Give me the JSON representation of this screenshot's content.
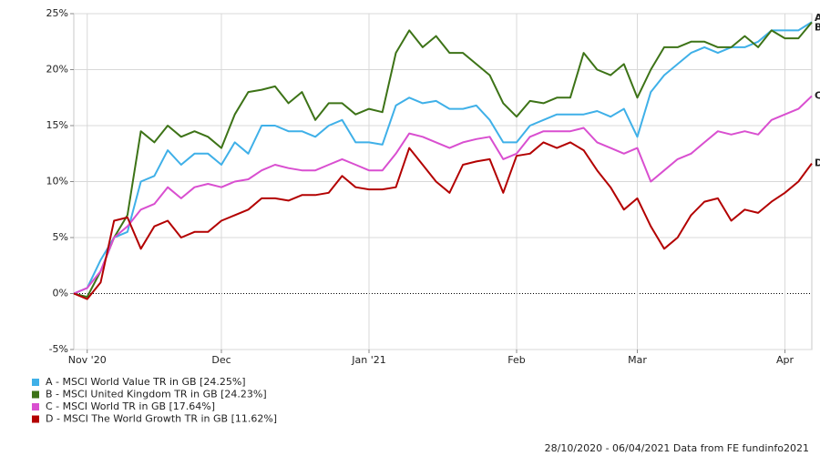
{
  "chart_data": {
    "type": "line",
    "categories": [
      null,
      "Nov '20",
      null,
      null,
      null,
      null,
      null,
      null,
      null,
      null,
      null,
      "Dec",
      null,
      null,
      null,
      null,
      null,
      null,
      null,
      null,
      null,
      null,
      "Jan '21",
      null,
      null,
      null,
      null,
      null,
      null,
      null,
      null,
      null,
      null,
      "Feb",
      null,
      null,
      null,
      null,
      null,
      null,
      null,
      null,
      "Mar",
      null,
      null,
      null,
      null,
      null,
      null,
      null,
      null,
      null,
      null,
      "Apr",
      null,
      null
    ],
    "ylim": [
      -5,
      25
    ],
    "yticks": [
      {
        "value": -5,
        "label": "-5%"
      },
      {
        "value": 0,
        "label": "0%"
      },
      {
        "value": 5,
        "label": "5%"
      },
      {
        "value": 10,
        "label": "10%"
      },
      {
        "value": 15,
        "label": "15%"
      },
      {
        "value": 20,
        "label": "20%"
      },
      {
        "value": 25,
        "label": "25%"
      }
    ],
    "grid": true,
    "series": [
      {
        "name": "A - MSCI World Value TR in GB [24.25%]",
        "tag": "A",
        "color": "#3fb0e8",
        "values": [
          0,
          0.5,
          3,
          5,
          5.5,
          10,
          10.5,
          12.8,
          11.5,
          12.5,
          12.5,
          11.5,
          13.5,
          12.5,
          15,
          15,
          14.5,
          14.5,
          14,
          15,
          15.5,
          13.5,
          13.5,
          13.3,
          16.8,
          17.5,
          17,
          17.2,
          16.5,
          16.5,
          16.8,
          15.5,
          13.5,
          13.5,
          15,
          15.5,
          16,
          16,
          16,
          16.3,
          15.8,
          16.5,
          14,
          18,
          19.5,
          20.5,
          21.5,
          22,
          21.5,
          22,
          22,
          22.5,
          23.5,
          23.5,
          23.5,
          24.25
        ]
      },
      {
        "name": "B - MSCI United Kingdom TR in GB [24.23%]",
        "tag": "B",
        "color": "#3d7317",
        "values": [
          0,
          -0.3,
          2,
          5,
          7,
          14.5,
          13.5,
          15,
          14,
          14.5,
          14,
          13,
          16,
          18,
          18.2,
          18.5,
          17,
          18,
          15.5,
          17,
          17,
          16,
          16.5,
          16.2,
          21.5,
          23.5,
          22,
          23,
          21.5,
          21.5,
          20.5,
          19.5,
          17,
          15.8,
          17.2,
          17,
          17.5,
          17.5,
          21.5,
          20,
          19.5,
          20.5,
          17.5,
          20,
          22,
          22,
          22.5,
          22.5,
          22,
          22,
          23,
          22,
          23.5,
          22.8,
          22.8,
          24.23
        ]
      },
      {
        "name": "C - MSCI World TR in GB [17.64%]",
        "tag": "C",
        "color": "#d94fd0",
        "values": [
          0,
          0.5,
          2,
          5,
          6,
          7.5,
          8,
          9.5,
          8.5,
          9.5,
          9.8,
          9.5,
          10,
          10.2,
          11,
          11.5,
          11.2,
          11,
          11,
          11.5,
          12,
          11.5,
          11,
          11,
          12.5,
          14.3,
          14,
          13.5,
          13,
          13.5,
          13.8,
          14,
          12,
          12.5,
          14,
          14.5,
          14.5,
          14.5,
          14.8,
          13.5,
          13,
          12.5,
          13,
          10,
          11,
          12,
          12.5,
          13.5,
          14.5,
          14.2,
          14.5,
          14.2,
          15.5,
          16,
          16.5,
          17.64
        ]
      },
      {
        "name": "D - MSCI The World Growth TR in GB [11.62%]",
        "tag": "D",
        "color": "#b30000",
        "values": [
          0,
          -0.5,
          1,
          6.5,
          6.8,
          4,
          6,
          6.5,
          5,
          5.5,
          5.5,
          6.5,
          7,
          7.5,
          8.5,
          8.5,
          8.3,
          8.8,
          8.8,
          9,
          10.5,
          9.5,
          9.3,
          9.3,
          9.5,
          13,
          11.5,
          10,
          9,
          11.5,
          11.8,
          12,
          9,
          12.3,
          12.5,
          13.5,
          13,
          13.5,
          12.8,
          11,
          9.5,
          7.5,
          8.5,
          6,
          4,
          5,
          7,
          8.2,
          8.5,
          6.5,
          7.5,
          7.2,
          8.2,
          9,
          10,
          11.62
        ]
      }
    ],
    "footer": "28/10/2020 - 06/04/2021 Data from FE fundinfo2021"
  }
}
